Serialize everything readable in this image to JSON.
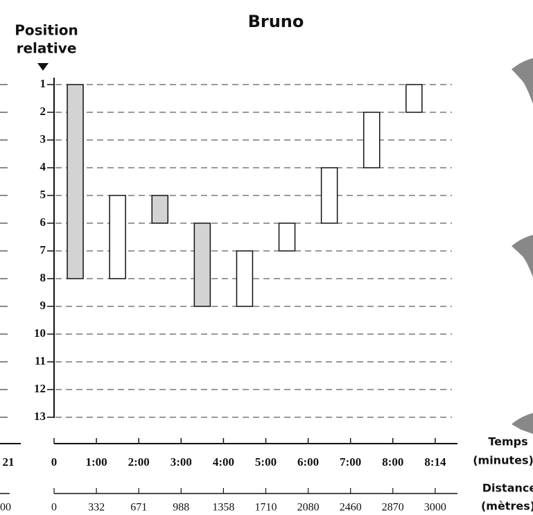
{
  "chart_data": {
    "type": "floating-bar",
    "title": "Bruno",
    "y_label_lines": [
      "Position",
      "relative"
    ],
    "yticks": [
      1,
      2,
      3,
      4,
      5,
      6,
      7,
      8,
      9,
      10,
      11,
      12,
      13
    ],
    "ylim": [
      1,
      13
    ],
    "y_inverted": true,
    "grid": true,
    "low": [
      1,
      5,
      5,
      6,
      7,
      6,
      4,
      2,
      1
    ],
    "high": [
      8,
      8,
      6,
      9,
      9,
      7,
      6,
      4,
      2
    ],
    "colors": [
      "#d3d3d3",
      "#ffffff",
      "#d3d3d3",
      "#d3d3d3",
      "#ffffff",
      "#ffffff",
      "#ffffff",
      "#ffffff",
      "#ffffff"
    ],
    "time_labels": [
      "0",
      "1:00",
      "2:00",
      "3:00",
      "4:00",
      "5:00",
      "6:00",
      "7:00",
      "8:00",
      "8:14"
    ],
    "time_axis_label": "Temps",
    "time_axis_unit": "(minutes)",
    "distance_ticks": [
      0,
      332,
      671,
      988,
      1358,
      1710,
      2080,
      2460,
      2870,
      3000
    ],
    "distance_axis_label": "Distance",
    "distance_axis_unit": "(mètres)",
    "clipped_labels": [
      "21",
      "00"
    ]
  }
}
